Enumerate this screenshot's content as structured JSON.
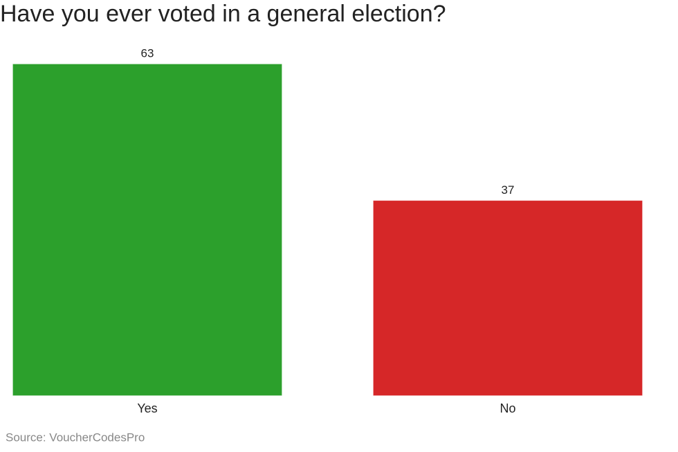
{
  "chart_data": {
    "type": "bar",
    "title": "Have you ever voted in a general election?",
    "categories": [
      "Yes",
      "No"
    ],
    "values": [
      63,
      37
    ],
    "colors": [
      "#2ca02c",
      "#d62728"
    ],
    "source": "Source: VoucherCodesPro"
  }
}
